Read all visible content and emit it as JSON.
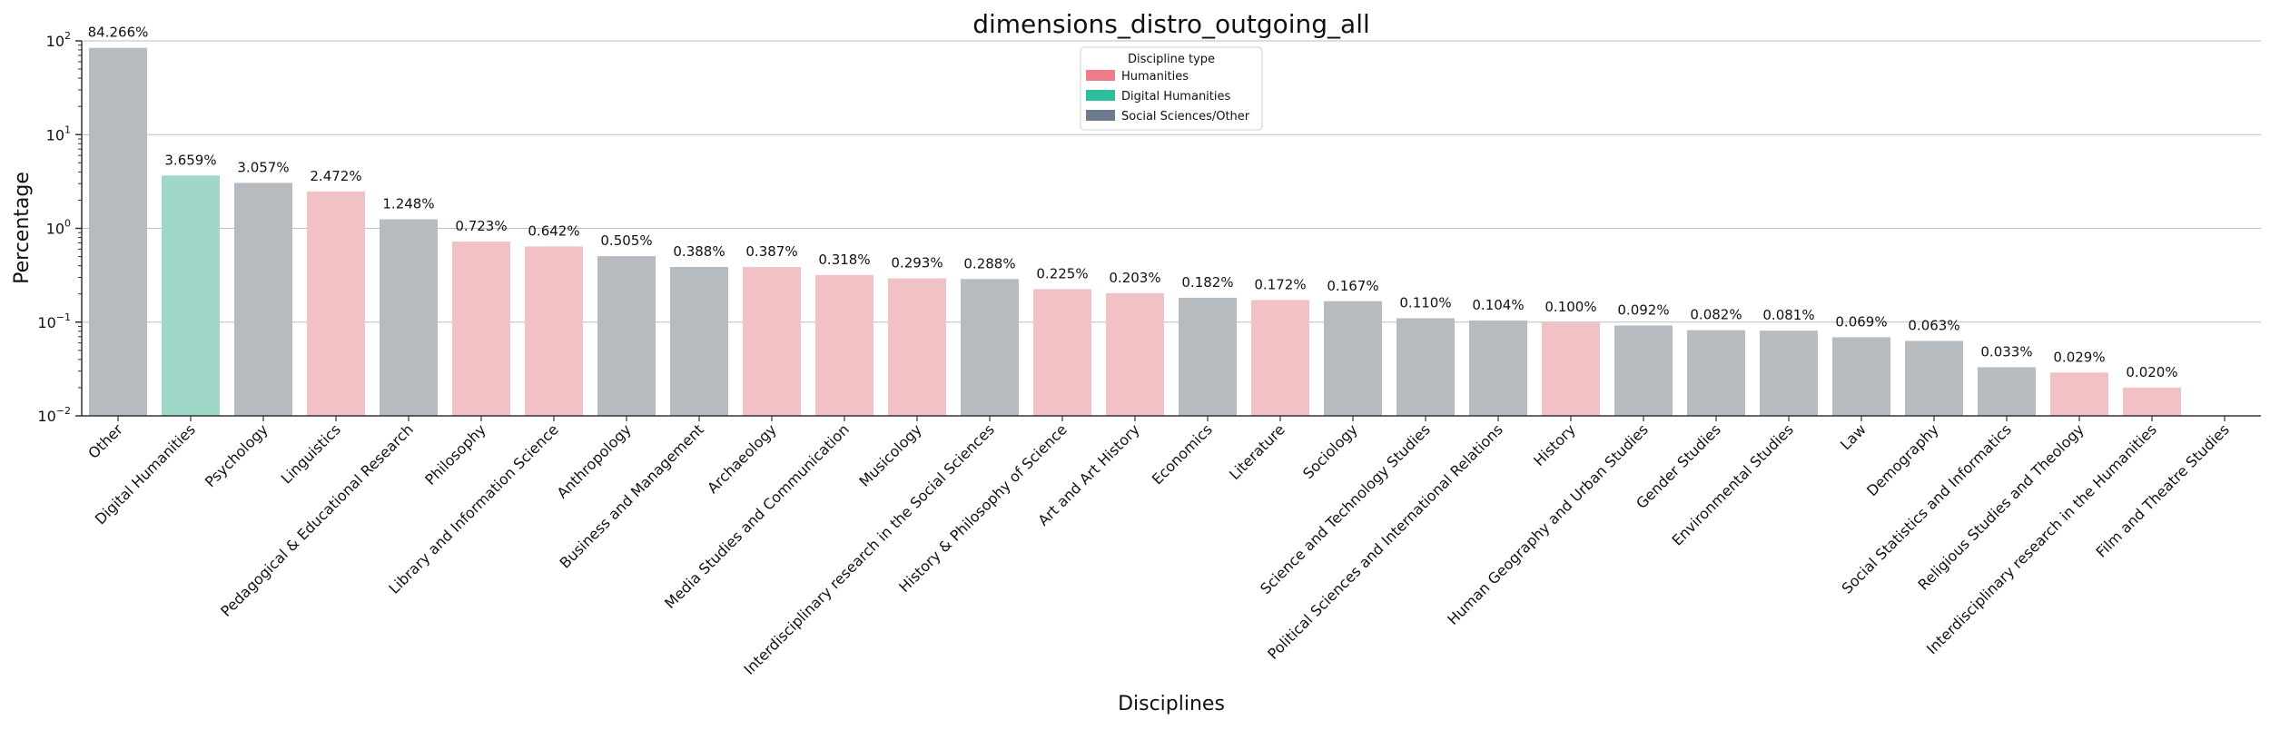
{
  "chart_data": {
    "type": "bar",
    "title": "dimensions_distro_outgoing_all",
    "xlabel": "Disciplines",
    "ylabel": "Percentage",
    "y_scale": "log",
    "ylim": [
      0.01,
      100
    ],
    "y_ticks": [
      {
        "value": 100,
        "base": "10",
        "exp": "2"
      },
      {
        "value": 10,
        "base": "10",
        "exp": "1"
      },
      {
        "value": 1,
        "base": "10",
        "exp": "0"
      },
      {
        "value": 0.1,
        "base": "10",
        "exp": "−1"
      },
      {
        "value": 0.01,
        "base": "10",
        "exp": "−2"
      }
    ],
    "grid": "horizontal major",
    "legend": {
      "title": "Discipline type",
      "placement": "top-center",
      "entries": [
        {
          "label": "Humanities",
          "color": "#f07c87"
        },
        {
          "label": "Digital Humanities",
          "color": "#2dbf9c"
        },
        {
          "label": "Social Sciences/Other",
          "color": "#6b7a8c"
        }
      ]
    },
    "bar_colors": {
      "Humanities": "#f2c1c6",
      "Digital Humanities": "#9ed6c7",
      "Social Sciences/Other": "#b6bbc0"
    },
    "categories": [
      "Other",
      "Digital Humanities",
      "Psychology",
      "Linguistics",
      "Pedagogical & Educational Research",
      "Philosophy",
      "Library and Information Science",
      "Anthropology",
      "Business and Management",
      "Archaeology",
      "Media Studies and Communication",
      "Musicology",
      "Interdisciplinary research in the Social Sciences",
      "History & Philosophy of Science",
      "Art and Art History",
      "Economics",
      "Literature",
      "Sociology",
      "Science and Technology Studies",
      "Political Sciences and International Relations",
      "History",
      "Human Geography and Urban Studies",
      "Gender Studies",
      "Environmental Studies",
      "Law",
      "Demography",
      "Social Statistics and Informatics",
      "Religious Studies and Theology",
      "Interdisciplinary research in the Humanities",
      "Film and Theatre Studies"
    ],
    "values": [
      84.266,
      3.659,
      3.057,
      2.472,
      1.248,
      0.723,
      0.642,
      0.505,
      0.388,
      0.387,
      0.318,
      0.293,
      0.288,
      0.225,
      0.203,
      0.182,
      0.172,
      0.167,
      0.11,
      0.104,
      0.1,
      0.092,
      0.082,
      0.081,
      0.069,
      0.063,
      0.033,
      0.029,
      0.02,
      null
    ],
    "value_labels": [
      "84.266%",
      "3.659%",
      "3.057%",
      "2.472%",
      "1.248%",
      "0.723%",
      "0.642%",
      "0.505%",
      "0.388%",
      "0.387%",
      "0.318%",
      "0.293%",
      "0.288%",
      "0.225%",
      "0.203%",
      "0.182%",
      "0.172%",
      "0.167%",
      "0.110%",
      "0.104%",
      "0.100%",
      "0.092%",
      "0.082%",
      "0.081%",
      "0.069%",
      "0.063%",
      "0.033%",
      "0.029%",
      "0.020%",
      ""
    ],
    "types": [
      "Social Sciences/Other",
      "Digital Humanities",
      "Social Sciences/Other",
      "Humanities",
      "Social Sciences/Other",
      "Humanities",
      "Humanities",
      "Social Sciences/Other",
      "Social Sciences/Other",
      "Humanities",
      "Humanities",
      "Humanities",
      "Social Sciences/Other",
      "Humanities",
      "Humanities",
      "Social Sciences/Other",
      "Humanities",
      "Social Sciences/Other",
      "Social Sciences/Other",
      "Social Sciences/Other",
      "Humanities",
      "Social Sciences/Other",
      "Social Sciences/Other",
      "Social Sciences/Other",
      "Social Sciences/Other",
      "Social Sciences/Other",
      "Social Sciences/Other",
      "Humanities",
      "Humanities",
      "Humanities"
    ]
  }
}
